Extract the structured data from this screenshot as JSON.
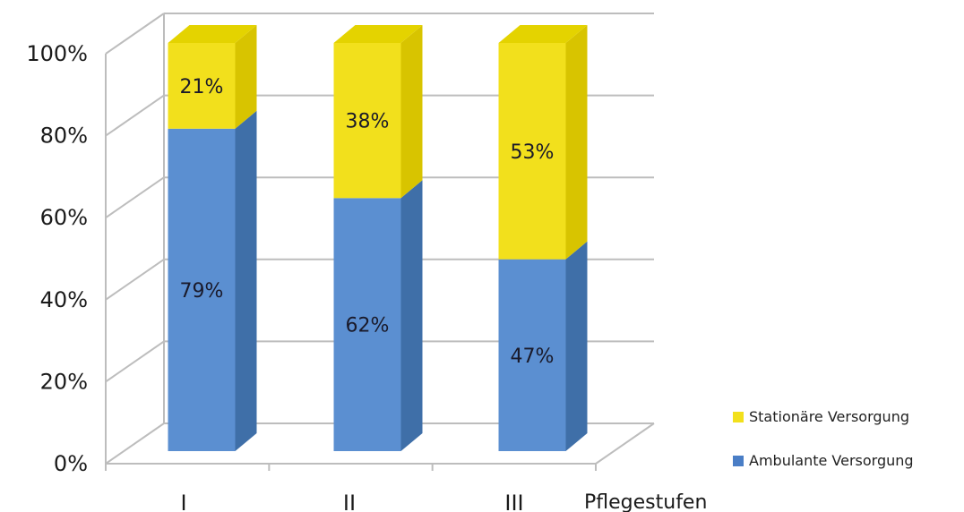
{
  "chart_data": {
    "type": "bar",
    "stacked": true,
    "percent_stacked": true,
    "three_d": true,
    "categories": [
      "I",
      "II",
      "III"
    ],
    "xlabel": "Pflegestufen",
    "ylim": [
      0,
      100
    ],
    "yticks": [
      "0%",
      "20%",
      "40%",
      "60%",
      "80%",
      "100%"
    ],
    "grid": true,
    "legend_position": "bottom-right",
    "series": [
      {
        "name": "Ambulante Versorgung",
        "values": [
          79,
          62,
          47
        ],
        "labels": [
          "79%",
          "62%",
          "47%"
        ],
        "color": "#5b8fd1",
        "side_color": "#3f6fa8",
        "top_color": "#3f6fa8"
      },
      {
        "name": "Stationäre Versorgung",
        "values": [
          21,
          38,
          53
        ],
        "labels": [
          "21%",
          "38%",
          "53%"
        ],
        "color": "#f2e01c",
        "side_color": "#d8c400",
        "top_color": "#e4d300"
      }
    ]
  }
}
